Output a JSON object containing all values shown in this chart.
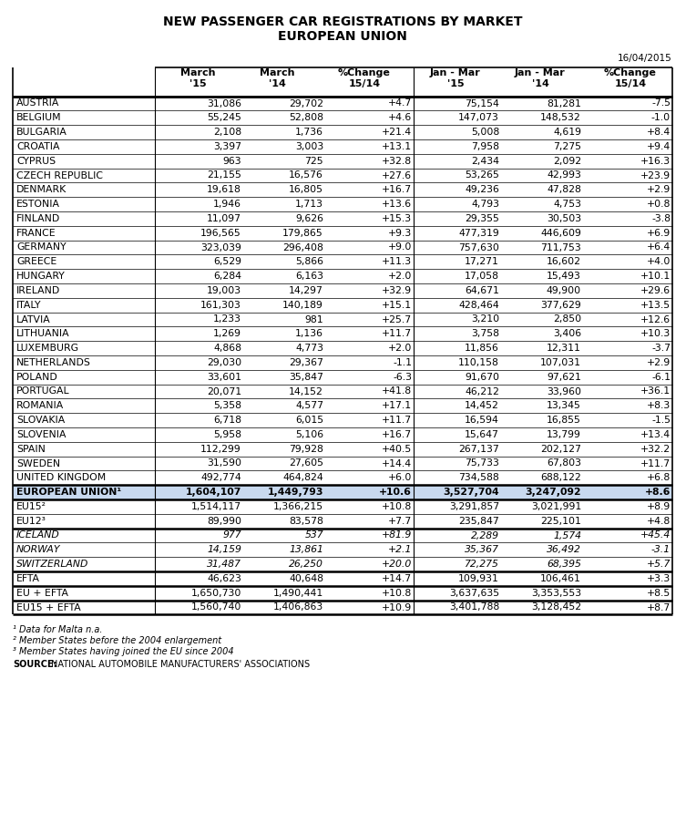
{
  "title_line1": "NEW PASSENGER CAR REGISTRATIONS BY MARKET",
  "title_line2": "EUROPEAN UNION",
  "date_label": "16/04/2015",
  "col_headers": [
    [
      "March",
      "'15"
    ],
    [
      "March",
      "'14"
    ],
    [
      "%Change",
      "15/14"
    ],
    [
      "Jan - Mar",
      "'15"
    ],
    [
      "Jan - Mar",
      "'14"
    ],
    [
      "%Change",
      "15/14"
    ]
  ],
  "rows": [
    {
      "name": "AUSTRIA",
      "m15": "31,086",
      "m14": "29,702",
      "pc": "+4.7",
      "jm15": "75,154",
      "jm14": "81,281",
      "jpc": "-7.5",
      "bold": false,
      "italic": false,
      "highlight": false
    },
    {
      "name": "BELGIUM",
      "m15": "55,245",
      "m14": "52,808",
      "pc": "+4.6",
      "jm15": "147,073",
      "jm14": "148,532",
      "jpc": "-1.0",
      "bold": false,
      "italic": false,
      "highlight": false
    },
    {
      "name": "BULGARIA",
      "m15": "2,108",
      "m14": "1,736",
      "pc": "+21.4",
      "jm15": "5,008",
      "jm14": "4,619",
      "jpc": "+8.4",
      "bold": false,
      "italic": false,
      "highlight": false
    },
    {
      "name": "CROATIA",
      "m15": "3,397",
      "m14": "3,003",
      "pc": "+13.1",
      "jm15": "7,958",
      "jm14": "7,275",
      "jpc": "+9.4",
      "bold": false,
      "italic": false,
      "highlight": false
    },
    {
      "name": "CYPRUS",
      "m15": "963",
      "m14": "725",
      "pc": "+32.8",
      "jm15": "2,434",
      "jm14": "2,092",
      "jpc": "+16.3",
      "bold": false,
      "italic": false,
      "highlight": false
    },
    {
      "name": "CZECH REPUBLIC",
      "m15": "21,155",
      "m14": "16,576",
      "pc": "+27.6",
      "jm15": "53,265",
      "jm14": "42,993",
      "jpc": "+23.9",
      "bold": false,
      "italic": false,
      "highlight": false
    },
    {
      "name": "DENMARK",
      "m15": "19,618",
      "m14": "16,805",
      "pc": "+16.7",
      "jm15": "49,236",
      "jm14": "47,828",
      "jpc": "+2.9",
      "bold": false,
      "italic": false,
      "highlight": false
    },
    {
      "name": "ESTONIA",
      "m15": "1,946",
      "m14": "1,713",
      "pc": "+13.6",
      "jm15": "4,793",
      "jm14": "4,753",
      "jpc": "+0.8",
      "bold": false,
      "italic": false,
      "highlight": false
    },
    {
      "name": "FINLAND",
      "m15": "11,097",
      "m14": "9,626",
      "pc": "+15.3",
      "jm15": "29,355",
      "jm14": "30,503",
      "jpc": "-3.8",
      "bold": false,
      "italic": false,
      "highlight": false
    },
    {
      "name": "FRANCE",
      "m15": "196,565",
      "m14": "179,865",
      "pc": "+9.3",
      "jm15": "477,319",
      "jm14": "446,609",
      "jpc": "+6.9",
      "bold": false,
      "italic": false,
      "highlight": false
    },
    {
      "name": "GERMANY",
      "m15": "323,039",
      "m14": "296,408",
      "pc": "+9.0",
      "jm15": "757,630",
      "jm14": "711,753",
      "jpc": "+6.4",
      "bold": false,
      "italic": false,
      "highlight": false
    },
    {
      "name": "GREECE",
      "m15": "6,529",
      "m14": "5,866",
      "pc": "+11.3",
      "jm15": "17,271",
      "jm14": "16,602",
      "jpc": "+4.0",
      "bold": false,
      "italic": false,
      "highlight": false
    },
    {
      "name": "HUNGARY",
      "m15": "6,284",
      "m14": "6,163",
      "pc": "+2.0",
      "jm15": "17,058",
      "jm14": "15,493",
      "jpc": "+10.1",
      "bold": false,
      "italic": false,
      "highlight": false
    },
    {
      "name": "IRELAND",
      "m15": "19,003",
      "m14": "14,297",
      "pc": "+32.9",
      "jm15": "64,671",
      "jm14": "49,900",
      "jpc": "+29.6",
      "bold": false,
      "italic": false,
      "highlight": false
    },
    {
      "name": "ITALY",
      "m15": "161,303",
      "m14": "140,189",
      "pc": "+15.1",
      "jm15": "428,464",
      "jm14": "377,629",
      "jpc": "+13.5",
      "bold": false,
      "italic": false,
      "highlight": false
    },
    {
      "name": "LATVIA",
      "m15": "1,233",
      "m14": "981",
      "pc": "+25.7",
      "jm15": "3,210",
      "jm14": "2,850",
      "jpc": "+12.6",
      "bold": false,
      "italic": false,
      "highlight": false
    },
    {
      "name": "LITHUANIA",
      "m15": "1,269",
      "m14": "1,136",
      "pc": "+11.7",
      "jm15": "3,758",
      "jm14": "3,406",
      "jpc": "+10.3",
      "bold": false,
      "italic": false,
      "highlight": false
    },
    {
      "name": "LUXEMBURG",
      "m15": "4,868",
      "m14": "4,773",
      "pc": "+2.0",
      "jm15": "11,856",
      "jm14": "12,311",
      "jpc": "-3.7",
      "bold": false,
      "italic": false,
      "highlight": false
    },
    {
      "name": "NETHERLANDS",
      "m15": "29,030",
      "m14": "29,367",
      "pc": "-1.1",
      "jm15": "110,158",
      "jm14": "107,031",
      "jpc": "+2.9",
      "bold": false,
      "italic": false,
      "highlight": false
    },
    {
      "name": "POLAND",
      "m15": "33,601",
      "m14": "35,847",
      "pc": "-6.3",
      "jm15": "91,670",
      "jm14": "97,621",
      "jpc": "-6.1",
      "bold": false,
      "italic": false,
      "highlight": false
    },
    {
      "name": "PORTUGAL",
      "m15": "20,071",
      "m14": "14,152",
      "pc": "+41.8",
      "jm15": "46,212",
      "jm14": "33,960",
      "jpc": "+36.1",
      "bold": false,
      "italic": false,
      "highlight": false
    },
    {
      "name": "ROMANIA",
      "m15": "5,358",
      "m14": "4,577",
      "pc": "+17.1",
      "jm15": "14,452",
      "jm14": "13,345",
      "jpc": "+8.3",
      "bold": false,
      "italic": false,
      "highlight": false
    },
    {
      "name": "SLOVAKIA",
      "m15": "6,718",
      "m14": "6,015",
      "pc": "+11.7",
      "jm15": "16,594",
      "jm14": "16,855",
      "jpc": "-1.5",
      "bold": false,
      "italic": false,
      "highlight": false
    },
    {
      "name": "SLOVENIA",
      "m15": "5,958",
      "m14": "5,106",
      "pc": "+16.7",
      "jm15": "15,647",
      "jm14": "13,799",
      "jpc": "+13.4",
      "bold": false,
      "italic": false,
      "highlight": false
    },
    {
      "name": "SPAIN",
      "m15": "112,299",
      "m14": "79,928",
      "pc": "+40.5",
      "jm15": "267,137",
      "jm14": "202,127",
      "jpc": "+32.2",
      "bold": false,
      "italic": false,
      "highlight": false
    },
    {
      "name": "SWEDEN",
      "m15": "31,590",
      "m14": "27,605",
      "pc": "+14.4",
      "jm15": "75,733",
      "jm14": "67,803",
      "jpc": "+11.7",
      "bold": false,
      "italic": false,
      "highlight": false
    },
    {
      "name": "UNITED KINGDOM",
      "m15": "492,774",
      "m14": "464,824",
      "pc": "+6.0",
      "jm15": "734,588",
      "jm14": "688,122",
      "jpc": "+6.8",
      "bold": false,
      "italic": false,
      "highlight": false
    },
    {
      "name": "EUROPEAN UNION¹",
      "m15": "1,604,107",
      "m14": "1,449,793",
      "pc": "+10.6",
      "jm15": "3,527,704",
      "jm14": "3,247,092",
      "jpc": "+8.6",
      "bold": true,
      "italic": false,
      "highlight": true
    },
    {
      "name": "EU15²",
      "m15": "1,514,117",
      "m14": "1,366,215",
      "pc": "+10.8",
      "jm15": "3,291,857",
      "jm14": "3,021,991",
      "jpc": "+8.9",
      "bold": false,
      "italic": false,
      "highlight": false
    },
    {
      "name": "EU12³",
      "m15": "89,990",
      "m14": "83,578",
      "pc": "+7.7",
      "jm15": "235,847",
      "jm14": "225,101",
      "jpc": "+4.8",
      "bold": false,
      "italic": false,
      "highlight": false
    },
    {
      "name": "ICELAND",
      "m15": "977",
      "m14": "537",
      "pc": "+81.9",
      "jm15": "2,289",
      "jm14": "1,574",
      "jpc": "+45.4",
      "bold": false,
      "italic": true,
      "highlight": false
    },
    {
      "name": "NORWAY",
      "m15": "14,159",
      "m14": "13,861",
      "pc": "+2.1",
      "jm15": "35,367",
      "jm14": "36,492",
      "jpc": "-3.1",
      "bold": false,
      "italic": true,
      "highlight": false
    },
    {
      "name": "SWITZERLAND",
      "m15": "31,487",
      "m14": "26,250",
      "pc": "+20.0",
      "jm15": "72,275",
      "jm14": "68,395",
      "jpc": "+5.7",
      "bold": false,
      "italic": true,
      "highlight": false
    },
    {
      "name": "EFTA",
      "m15": "46,623",
      "m14": "40,648",
      "pc": "+14.7",
      "jm15": "109,931",
      "jm14": "106,461",
      "jpc": "+3.3",
      "bold": false,
      "italic": false,
      "highlight": false
    },
    {
      "name": "EU + EFTA",
      "m15": "1,650,730",
      "m14": "1,490,441",
      "pc": "+10.8",
      "jm15": "3,637,635",
      "jm14": "3,353,553",
      "jpc": "+8.5",
      "bold": false,
      "italic": false,
      "highlight": false
    },
    {
      "name": "EU15 + EFTA",
      "m15": "1,560,740",
      "m14": "1,406,863",
      "pc": "+10.9",
      "jm15": "3,401,788",
      "jm14": "3,128,452",
      "jpc": "+8.7",
      "bold": false,
      "italic": false,
      "highlight": false
    }
  ],
  "highlight_color": "#c8d9ef",
  "bg_color": "#ffffff",
  "title_color": "#000000",
  "source_label": "SOURCE:",
  "source_text": "NATIONAL AUTOMOBILE MANUFACTURERS' ASSOCIATIONS",
  "footnote1": "¹ Data for Malta n.a.",
  "footnote2": "² Member States before the 2004 enlargement",
  "footnote3": "³ Member States having joined the EU since 2004",
  "thick_top_rows": [
    0,
    27,
    28,
    30,
    33,
    34,
    35
  ],
  "thick_bottom_rows": [
    26,
    27,
    29,
    32,
    33,
    34,
    35
  ]
}
